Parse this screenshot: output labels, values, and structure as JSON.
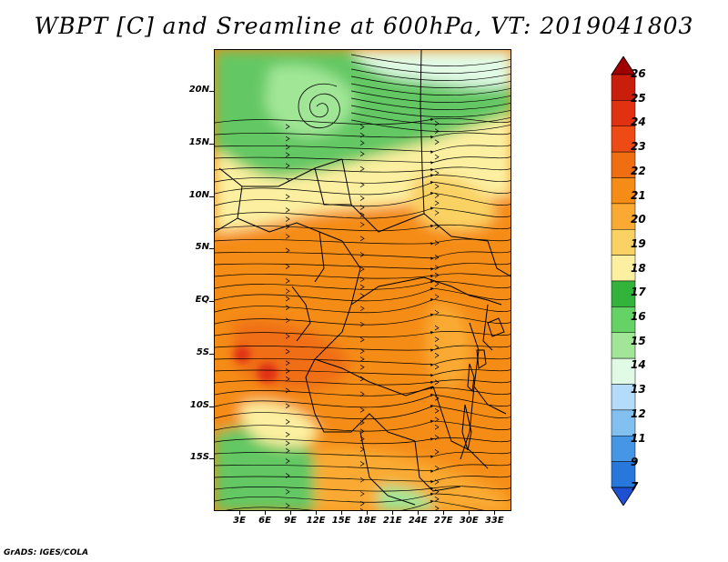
{
  "title": "WBPT [C] and Sreamline at 600hPa, VT: 2019041803",
  "footer": "GrADS: IGES/COLA",
  "lat_labels": [
    "20N",
    "15N",
    "10N",
    "5N",
    "EQ",
    "5S",
    "10S",
    "15S"
  ],
  "lon_labels": [
    "3E",
    "6E",
    "9E",
    "12E",
    "15E",
    "18E",
    "21E",
    "24E",
    "27E",
    "30E",
    "33E"
  ],
  "colorbar": {
    "labels": [
      "26",
      "25",
      "24",
      "23",
      "22",
      "21",
      "20",
      "19",
      "18",
      "17",
      "16",
      "15",
      "14",
      "13",
      "12",
      "11",
      "9",
      "7"
    ],
    "colors": [
      "#a00000",
      "#c81e0a",
      "#e03212",
      "#ee4a14",
      "#f06e12",
      "#f58c16",
      "#faaa32",
      "#fad264",
      "#fcf0a0",
      "#32b43c",
      "#64d264",
      "#a0e696",
      "#e1fae6",
      "#b4dcfa",
      "#82c0f0",
      "#4696e6",
      "#2878dc",
      "#1e50d2"
    ]
  },
  "map": {
    "field": "Wet-bulb potential temperature",
    "overlay": "Streamlines",
    "colors": {
      "cold_green": "#3cb446",
      "green": "#64c864",
      "light_green": "#a0e696",
      "pale": "#e1fae6",
      "cream": "#fcf0a0",
      "yellow": "#fad264",
      "light_orange": "#faaa32",
      "orange": "#f58c16",
      "deep_orange": "#f06e12",
      "red": "#e03212",
      "border": "#000000",
      "streamline": "#000000"
    }
  }
}
